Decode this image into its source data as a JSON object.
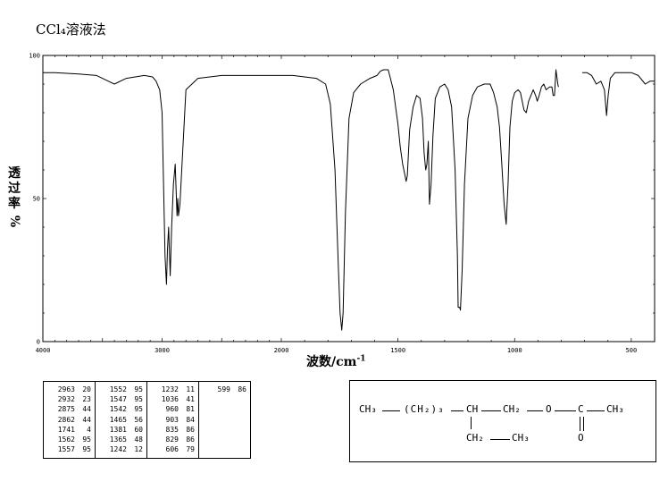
{
  "title": "CCl₄溶液法",
  "ylabel": {
    "text": "透过率",
    "unit": "%"
  },
  "xlabel": {
    "text": "波数/cm",
    "sup": "-1"
  },
  "chart_data": {
    "type": "line",
    "xlabel": "波数/cm-1",
    "ylabel": "透过率 %",
    "xlim": [
      4000,
      400
    ],
    "ylim": [
      0,
      100
    ],
    "x_ticks": [
      4000,
      3000,
      2000,
      1500,
      1000,
      500
    ],
    "x_tick_labels": [
      "4000",
      "3000",
      "2000",
      "1500",
      "1000",
      "500"
    ],
    "y_ticks": [
      0,
      50,
      100
    ],
    "y_tick_labels": [
      "0",
      "50",
      "100"
    ],
    "grid": false,
    "series": [
      {
        "x": [
          4000,
          3900,
          3700,
          3550,
          3450,
          3400,
          3300,
          3150,
          3080,
          3050,
          3020,
          3000,
          2990,
          2975,
          2963,
          2955,
          2945,
          2932,
          2920,
          2905,
          2890,
          2875,
          2868,
          2862,
          2850,
          2835,
          2800,
          2700,
          2500,
          2300,
          2200,
          2100,
          2000,
          1950,
          1900,
          1850,
          1810,
          1790,
          1770,
          1755,
          1748,
          1741,
          1735,
          1725,
          1710,
          1690,
          1660,
          1620,
          1590,
          1575,
          1562,
          1557,
          1552,
          1547,
          1542,
          1520,
          1500,
          1490,
          1480,
          1470,
          1465,
          1460,
          1450,
          1435,
          1420,
          1405,
          1395,
          1388,
          1381,
          1376,
          1370,
          1365,
          1358,
          1350,
          1340,
          1320,
          1300,
          1285,
          1270,
          1255,
          1245,
          1242,
          1236,
          1232,
          1225,
          1215,
          1200,
          1180,
          1160,
          1130,
          1105,
          1090,
          1075,
          1065,
          1055,
          1045,
          1036,
          1028,
          1020,
          1010,
          1000,
          985,
          975,
          960,
          950,
          940,
          930,
          920,
          910,
          903,
          895,
          885,
          875,
          865,
          850,
          840,
          835,
          829,
          823,
          815,
          812
        ],
        "y": [
          94,
          94,
          93.5,
          93,
          91,
          90,
          92,
          93,
          92.5,
          91,
          88,
          80,
          60,
          30,
          20,
          32,
          40,
          23,
          40,
          55,
          62,
          44,
          50,
          44,
          48,
          60,
          88,
          92,
          93,
          93,
          93,
          93,
          93,
          93,
          92.5,
          92,
          90,
          83,
          60,
          25,
          10,
          4,
          10,
          45,
          78,
          87,
          90,
          92,
          93,
          94.5,
          95,
          95,
          95,
          95,
          95,
          88,
          76,
          68,
          62,
          58,
          56,
          58,
          74,
          82,
          86,
          85,
          78,
          66,
          60,
          62,
          70,
          48,
          55,
          72,
          85,
          89,
          90,
          88,
          82,
          60,
          30,
          12,
          12,
          11,
          25,
          55,
          78,
          86,
          89,
          90,
          90,
          87,
          82,
          75,
          62,
          48,
          41,
          55,
          75,
          84,
          87,
          88,
          87,
          81,
          80,
          84,
          86,
          88,
          86,
          84,
          86,
          89,
          90,
          88,
          89,
          89,
          86,
          86,
          95,
          90,
          89
        ]
      },
      {
        "x": [
          710,
          690,
          670,
          650,
          630,
          615,
          606,
          599,
          590,
          570,
          540,
          500,
          470,
          440,
          420,
          400
        ],
        "y": [
          94,
          94,
          93,
          90,
          91,
          88,
          79,
          86,
          92,
          94,
          94,
          94,
          93,
          90,
          91,
          91
        ]
      }
    ],
    "peak_table": [
      [
        [
          "2963",
          "20"
        ],
        [
          "2932",
          "23"
        ],
        [
          "2875",
          "44"
        ],
        [
          "2862",
          "44"
        ],
        [
          "1741",
          "4"
        ],
        [
          "1562",
          "95"
        ],
        [
          "1557",
          "95"
        ]
      ],
      [
        [
          "1552",
          "95"
        ],
        [
          "1547",
          "95"
        ],
        [
          "1542",
          "95"
        ],
        [
          "1465",
          "56"
        ],
        [
          "1381",
          "60"
        ],
        [
          "1365",
          "48"
        ],
        [
          "1242",
          "12"
        ]
      ],
      [
        [
          "1232",
          "11"
        ],
        [
          "1036",
          "41"
        ],
        [
          "960",
          "81"
        ],
        [
          "903",
          "84"
        ],
        [
          "835",
          "86"
        ],
        [
          "829",
          "86"
        ],
        [
          "606",
          "79"
        ]
      ],
      [
        [
          "599",
          "86"
        ]
      ]
    ]
  },
  "structure": {
    "ch3_left": "CH₃",
    "chain": "(CH₂)₃",
    "ch": "CH",
    "ch2": "CH₂",
    "o": "O",
    "c": "C",
    "ch3_right": "CH₃",
    "carbonyl_o": "O",
    "ethyl": "CH₂",
    "ethyl_ch3": "CH₃"
  }
}
